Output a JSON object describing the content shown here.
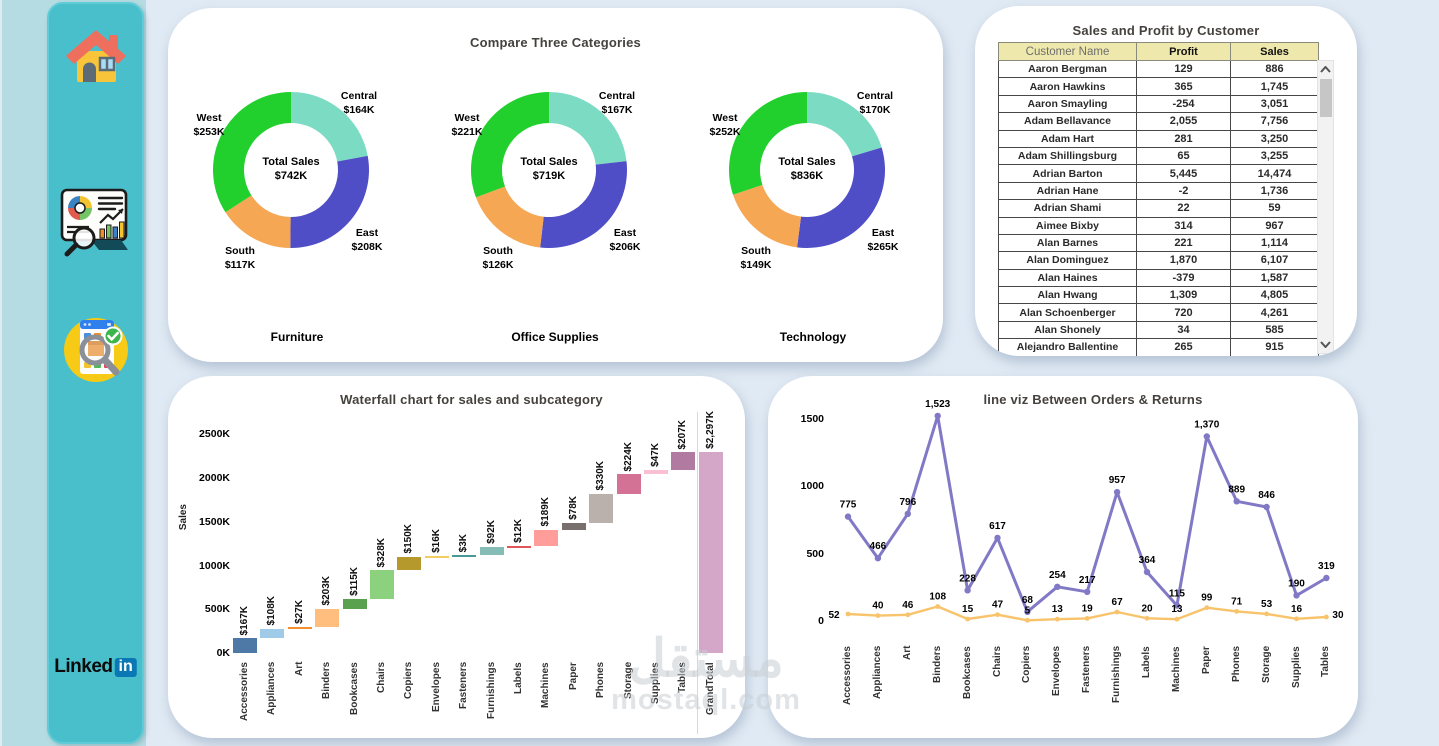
{
  "sidebar": {
    "linkedin_text": "Linked",
    "linkedin_badge": "in",
    "bg_color": "#49bfcc"
  },
  "donut_panel": {
    "title": "Compare Three Categories",
    "center_label": "Total Sales",
    "region_colors": {
      "Central": "#7cdbc3",
      "East": "#504ec6",
      "South": "#f6a754",
      "West": "#21d02d"
    },
    "charts": [
      {
        "category": "Furniture",
        "total_label": "$742K",
        "segments": [
          {
            "region": "Central",
            "label": "$164K",
            "value": 164
          },
          {
            "region": "East",
            "label": "$208K",
            "value": 208
          },
          {
            "region": "South",
            "label": "$117K",
            "value": 117
          },
          {
            "region": "West",
            "label": "$253K",
            "value": 253
          }
        ]
      },
      {
        "category": "Office Supplies",
        "total_label": "$719K",
        "segments": [
          {
            "region": "Central",
            "label": "$167K",
            "value": 167
          },
          {
            "region": "East",
            "label": "$206K",
            "value": 206
          },
          {
            "region": "South",
            "label": "$126K",
            "value": 126
          },
          {
            "region": "West",
            "label": "$221K",
            "value": 221
          }
        ]
      },
      {
        "category": "Technology",
        "total_label": "$836K",
        "segments": [
          {
            "region": "Central",
            "label": "$170K",
            "value": 170
          },
          {
            "region": "East",
            "label": "$265K",
            "value": 265
          },
          {
            "region": "South",
            "label": "$149K",
            "value": 149
          },
          {
            "region": "West",
            "label": "$252K",
            "value": 252
          }
        ]
      }
    ]
  },
  "table_panel": {
    "title": "Sales and Profit by Customer",
    "columns": [
      "Customer Name",
      "Profit",
      "Sales"
    ],
    "rows": [
      [
        "Aaron Bergman",
        "129",
        "886"
      ],
      [
        "Aaron Hawkins",
        "365",
        "1,745"
      ],
      [
        "Aaron Smayling",
        "-254",
        "3,051"
      ],
      [
        "Adam Bellavance",
        "2,055",
        "7,756"
      ],
      [
        "Adam Hart",
        "281",
        "3,250"
      ],
      [
        "Adam Shillingsburg",
        "65",
        "3,255"
      ],
      [
        "Adrian Barton",
        "5,445",
        "14,474"
      ],
      [
        "Adrian Hane",
        "-2",
        "1,736"
      ],
      [
        "Adrian Shami",
        "22",
        "59"
      ],
      [
        "Aimee Bixby",
        "314",
        "967"
      ],
      [
        "Alan Barnes",
        "221",
        "1,114"
      ],
      [
        "Alan Dominguez",
        "1,870",
        "6,107"
      ],
      [
        "Alan Haines",
        "-379",
        "1,587"
      ],
      [
        "Alan Hwang",
        "1,309",
        "4,805"
      ],
      [
        "Alan Schoenberger",
        "720",
        "4,261"
      ],
      [
        "Alan Shonely",
        "34",
        "585"
      ],
      [
        "Alejandro Ballentine",
        "265",
        "915"
      ]
    ]
  },
  "waterfall_panel": {
    "title": "Waterfall chart for sales and subcategory",
    "y_axis_label": "Sales",
    "y_ticks": [
      "0K",
      "500K",
      "1000K",
      "1500K",
      "2000K",
      "2500K"
    ],
    "bars": [
      {
        "name": "Accessories",
        "value": 167,
        "label": "$167K",
        "color": "#4E79A7"
      },
      {
        "name": "Appliances",
        "value": 108,
        "label": "$108K",
        "color": "#A0CBE8"
      },
      {
        "name": "Art",
        "value": 27,
        "label": "$27K",
        "color": "#F28E2B"
      },
      {
        "name": "Binders",
        "value": 203,
        "label": "$203K",
        "color": "#FFBE7D"
      },
      {
        "name": "Bookcases",
        "value": 115,
        "label": "$115K",
        "color": "#59A14F"
      },
      {
        "name": "Chairs",
        "value": 328,
        "label": "$328K",
        "color": "#8CD17D"
      },
      {
        "name": "Copiers",
        "value": 150,
        "label": "$150K",
        "color": "#B6992D"
      },
      {
        "name": "Envelopes",
        "value": 16,
        "label": "$16K",
        "color": "#F1CE63"
      },
      {
        "name": "Fasteners",
        "value": 3,
        "label": "$3K",
        "color": "#499894"
      },
      {
        "name": "Furnishings",
        "value": 92,
        "label": "$92K",
        "color": "#86BCB6"
      },
      {
        "name": "Labels",
        "value": 12,
        "label": "$12K",
        "color": "#E15759"
      },
      {
        "name": "Machines",
        "value": 189,
        "label": "$189K",
        "color": "#FF9D9A"
      },
      {
        "name": "Paper",
        "value": 78,
        "label": "$78K",
        "color": "#79706E"
      },
      {
        "name": "Phones",
        "value": 330,
        "label": "$330K",
        "color": "#BAB0AC"
      },
      {
        "name": "Storage",
        "value": 224,
        "label": "$224K",
        "color": "#D37295"
      },
      {
        "name": "Supplies",
        "value": 47,
        "label": "$47K",
        "color": "#FABFD2"
      },
      {
        "name": "Tables",
        "value": 207,
        "label": "$207K",
        "color": "#B07AA1"
      },
      {
        "name": "GrandTotal",
        "value": 2297,
        "label": "$2,297K",
        "color": "#D4A6C8",
        "is_total": true
      }
    ]
  },
  "line_panel": {
    "title": "line viz Between Orders & Returns",
    "y_ticks": [
      "0",
      "500",
      "1000",
      "1500"
    ],
    "categories": [
      "Accessories",
      "Appliances",
      "Art",
      "Binders",
      "Bookcases",
      "Chairs",
      "Copiers",
      "Envelopes",
      "Fasteners",
      "Furnishings",
      "Labels",
      "Machines",
      "Paper",
      "Phones",
      "Storage",
      "Supplies",
      "Tables"
    ],
    "series": [
      {
        "name": "Orders",
        "color": "#8179C6",
        "values": [
          775,
          466,
          796,
          1523,
          228,
          617,
          68,
          254,
          217,
          957,
          364,
          115,
          1370,
          889,
          846,
          190,
          319
        ],
        "labels": [
          "775",
          "466",
          "796",
          "1,523",
          "228",
          "617",
          "68",
          "254",
          "217",
          "957",
          "364",
          "115",
          "1,370",
          "889",
          "846",
          "190",
          "319"
        ]
      },
      {
        "name": "Returns",
        "color": "#F8C36A",
        "values": [
          52,
          40,
          46,
          108,
          15,
          47,
          5,
          13,
          19,
          67,
          20,
          13,
          99,
          71,
          53,
          16,
          30
        ],
        "labels": [
          "52",
          "40",
          "46",
          "108",
          "15",
          "47",
          "5",
          "13",
          "19",
          "67",
          "20",
          "13",
          "99",
          "71",
          "53",
          "16",
          "30"
        ]
      }
    ]
  },
  "watermark": {
    "line1": "مستقل",
    "line2": "mostaql.com"
  },
  "chart_data": [
    {
      "type": "pie",
      "title": "Compare Three Categories",
      "units": "$K",
      "charts": [
        {
          "label": "Furniture",
          "categories": [
            "Central",
            "East",
            "South",
            "West"
          ],
          "values": [
            164,
            208,
            117,
            253
          ],
          "total": 742
        },
        {
          "label": "Office Supplies",
          "categories": [
            "Central",
            "East",
            "South",
            "West"
          ],
          "values": [
            167,
            206,
            126,
            221
          ],
          "total": 719
        },
        {
          "label": "Technology",
          "categories": [
            "Central",
            "East",
            "South",
            "West"
          ],
          "values": [
            170,
            265,
            149,
            252
          ],
          "total": 836
        }
      ]
    },
    {
      "type": "table",
      "title": "Sales and Profit by Customer",
      "columns": [
        "Customer Name",
        "Profit",
        "Sales"
      ],
      "rows": [
        [
          "Aaron Bergman",
          129,
          886
        ],
        [
          "Aaron Hawkins",
          365,
          1745
        ],
        [
          "Aaron Smayling",
          -254,
          3051
        ],
        [
          "Adam Bellavance",
          2055,
          7756
        ],
        [
          "Adam Hart",
          281,
          3250
        ],
        [
          "Adam Shillingsburg",
          65,
          3255
        ],
        [
          "Adrian Barton",
          5445,
          14474
        ],
        [
          "Adrian Hane",
          -2,
          1736
        ],
        [
          "Adrian Shami",
          22,
          59
        ],
        [
          "Aimee Bixby",
          314,
          967
        ],
        [
          "Alan Barnes",
          221,
          1114
        ],
        [
          "Alan Dominguez",
          1870,
          6107
        ],
        [
          "Alan Haines",
          -379,
          1587
        ],
        [
          "Alan Hwang",
          1309,
          4805
        ],
        [
          "Alan Schoenberger",
          720,
          4261
        ],
        [
          "Alan Shonely",
          34,
          585
        ],
        [
          "Alejandro Ballentine",
          265,
          915
        ]
      ]
    },
    {
      "type": "bar",
      "subtype": "waterfall",
      "title": "Waterfall chart for sales and subcategory",
      "xlabel": "",
      "ylabel": "Sales",
      "ylim": [
        0,
        2500
      ],
      "units": "K",
      "categories": [
        "Accessories",
        "Appliances",
        "Art",
        "Binders",
        "Bookcases",
        "Chairs",
        "Copiers",
        "Envelopes",
        "Fasteners",
        "Furnishings",
        "Labels",
        "Machines",
        "Paper",
        "Phones",
        "Storage",
        "Supplies",
        "Tables",
        "GrandTotal"
      ],
      "values": [
        167,
        108,
        27,
        203,
        115,
        328,
        150,
        16,
        3,
        92,
        12,
        189,
        78,
        330,
        224,
        47,
        207,
        2297
      ]
    },
    {
      "type": "line",
      "title": "line viz Between Orders & Returns",
      "xlabel": "",
      "ylabel": "",
      "ylim": [
        0,
        1500
      ],
      "grid": false,
      "legend": "none",
      "categories": [
        "Accessories",
        "Appliances",
        "Art",
        "Binders",
        "Bookcases",
        "Chairs",
        "Copiers",
        "Envelopes",
        "Fasteners",
        "Furnishings",
        "Labels",
        "Machines",
        "Paper",
        "Phones",
        "Storage",
        "Supplies",
        "Tables"
      ],
      "series": [
        {
          "name": "Orders",
          "values": [
            775,
            466,
            796,
            1523,
            228,
            617,
            68,
            254,
            217,
            957,
            364,
            115,
            1370,
            889,
            846,
            190,
            319
          ]
        },
        {
          "name": "Returns",
          "values": [
            52,
            40,
            46,
            108,
            15,
            47,
            5,
            13,
            19,
            67,
            20,
            13,
            99,
            71,
            53,
            16,
            30
          ]
        }
      ]
    }
  ]
}
